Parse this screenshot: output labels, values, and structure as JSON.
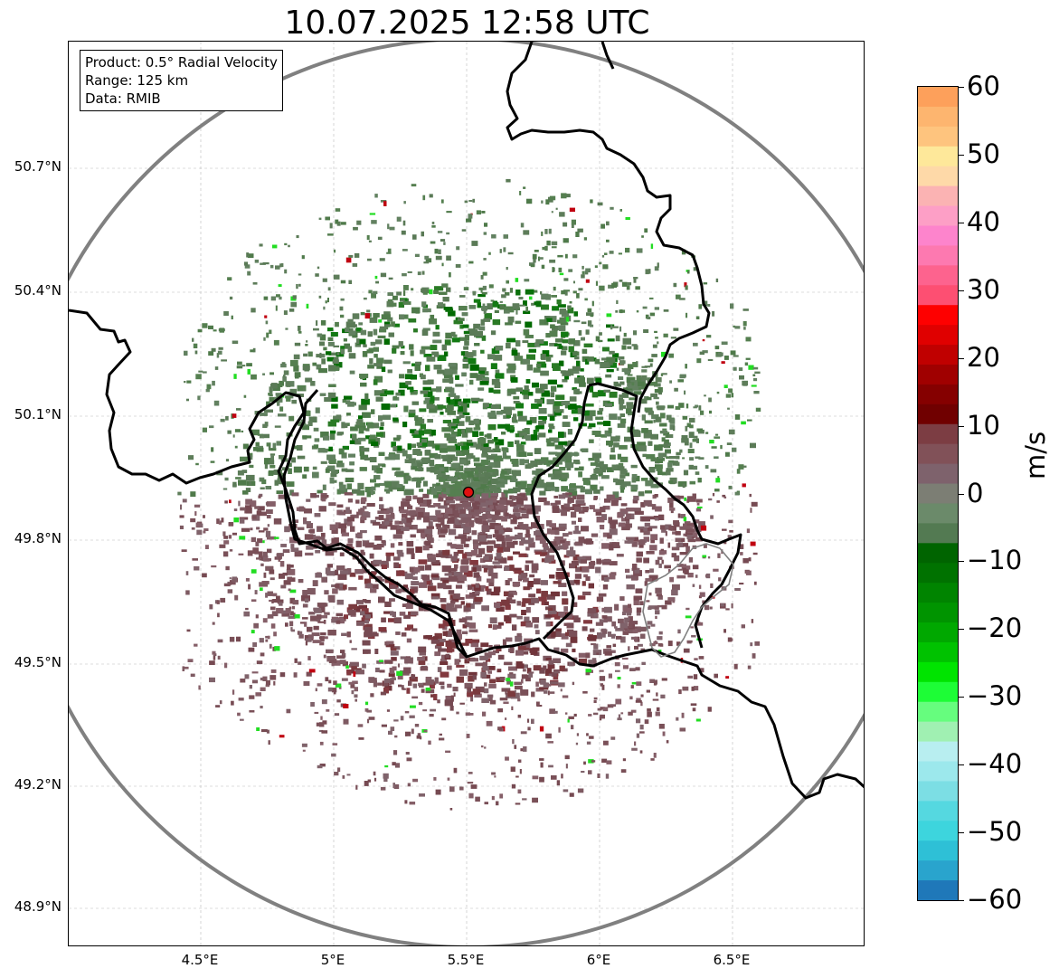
{
  "title": "10.07.2025 12:58 UTC",
  "info": {
    "product": "Product: 0.5° Radial Velocity",
    "range": "Range: 125 km",
    "source": "Data: RMIB"
  },
  "axes": {
    "y_ticks": [
      "50.7°N",
      "50.4°N",
      "50.1°N",
      "49.8°N",
      "49.5°N",
      "49.2°N",
      "48.9°N"
    ],
    "x_ticks": [
      "4.5°E",
      "5°E",
      "5.5°E",
      "6°E",
      "6.5°E"
    ]
  },
  "colorbar": {
    "unit": "m/s",
    "ticks": [
      "60",
      "50",
      "40",
      "30",
      "20",
      "10",
      "0",
      "−10",
      "−20",
      "−30",
      "−40",
      "−50",
      "−60"
    ],
    "colors": [
      "#fda05b",
      "#fdb56f",
      "#fec47e",
      "#fee89a",
      "#fed9a8",
      "#fbb3b3",
      "#fd9fc6",
      "#fd84cc",
      "#fd79b0",
      "#fd638e",
      "#fd4f72",
      "#fe0000",
      "#e00000",
      "#c00000",
      "#a00000",
      "#850000",
      "#700000",
      "#7c3d43",
      "#815158",
      "#7e626c",
      "#7c7e74",
      "#6b8a6a",
      "#537a52",
      "#006400",
      "#007200",
      "#008400",
      "#009400",
      "#00a800",
      "#00c200",
      "#00e400",
      "#1dfd36",
      "#66fd7e",
      "#a0f0b2",
      "#b8eef0",
      "#9ce8ec",
      "#7cdee4",
      "#55d8e0",
      "#3dd5dd",
      "#2ec0d6",
      "#29a4cd",
      "#1f78b9"
    ]
  },
  "radar_site": {
    "lon": 5.505,
    "lat": 49.914
  }
}
